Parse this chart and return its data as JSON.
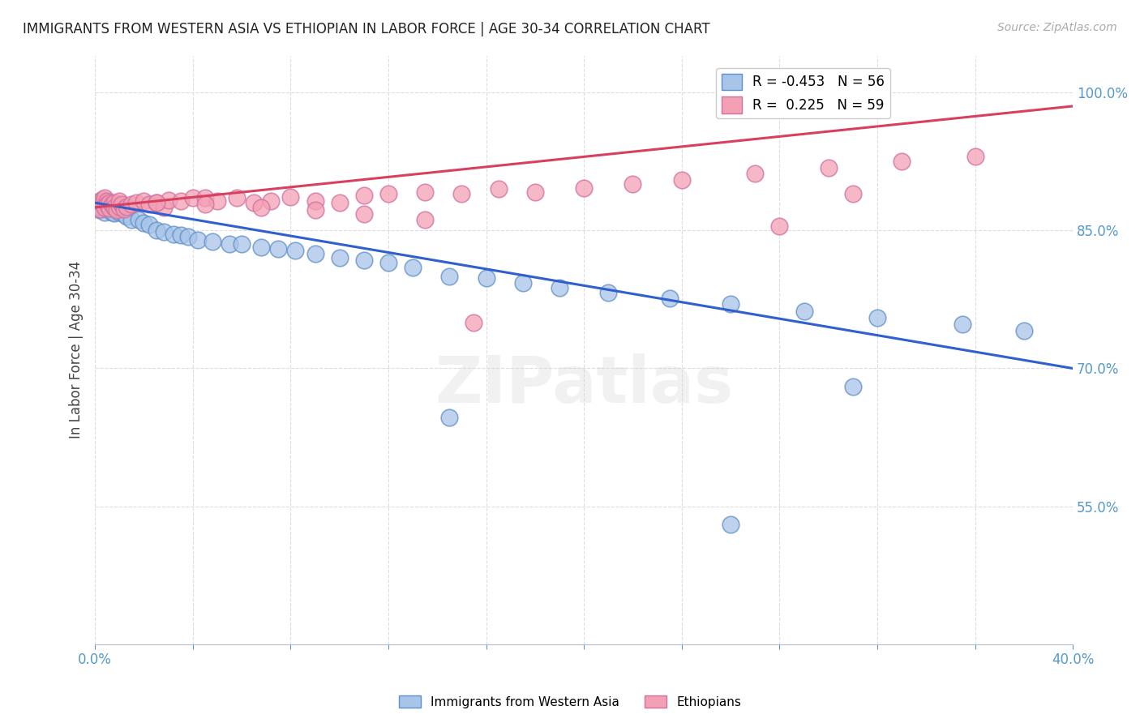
{
  "title": "IMMIGRANTS FROM WESTERN ASIA VS ETHIOPIAN IN LABOR FORCE | AGE 30-34 CORRELATION CHART",
  "source": "Source: ZipAtlas.com",
  "ylabel": "In Labor Force | Age 30-34",
  "xlim": [
    0.0,
    0.4
  ],
  "ylim": [
    0.4,
    1.04
  ],
  "xticks": [
    0.0,
    0.04,
    0.08,
    0.12,
    0.16,
    0.2,
    0.24,
    0.28,
    0.32,
    0.36,
    0.4
  ],
  "xtick_labels": [
    "0.0%",
    "",
    "",
    "",
    "",
    "",
    "",
    "",
    "",
    "",
    "40.0%"
  ],
  "yticks_right": [
    0.55,
    0.7,
    0.85,
    1.0
  ],
  "ytick_labels_right": [
    "55.0%",
    "70.0%",
    "85.0%",
    "100.0%"
  ],
  "legend_blue_r": "-0.453",
  "legend_blue_n": "56",
  "legend_pink_r": "0.225",
  "legend_pink_n": "59",
  "blue_color": "#a8c4e8",
  "pink_color": "#f4a0b4",
  "blue_line_color": "#3060d0",
  "pink_line_color": "#d84060",
  "axis_color": "#5599cc",
  "watermark": "ZIPatlas",
  "blue_scatter_x": [
    0.001,
    0.002,
    0.002,
    0.003,
    0.003,
    0.004,
    0.004,
    0.005,
    0.005,
    0.006,
    0.006,
    0.007,
    0.007,
    0.008,
    0.008,
    0.009,
    0.01,
    0.01,
    0.011,
    0.012,
    0.013,
    0.015,
    0.018,
    0.02,
    0.022,
    0.025,
    0.028,
    0.032,
    0.035,
    0.038,
    0.042,
    0.048,
    0.055,
    0.06,
    0.068,
    0.075,
    0.082,
    0.09,
    0.1,
    0.11,
    0.12,
    0.13,
    0.145,
    0.16,
    0.175,
    0.19,
    0.21,
    0.235,
    0.26,
    0.29,
    0.32,
    0.355,
    0.38,
    0.145,
    0.26,
    0.31
  ],
  "blue_scatter_y": [
    0.876,
    0.878,
    0.872,
    0.88,
    0.875,
    0.882,
    0.87,
    0.878,
    0.874,
    0.876,
    0.872,
    0.87,
    0.875,
    0.873,
    0.869,
    0.876,
    0.873,
    0.87,
    0.875,
    0.868,
    0.865,
    0.862,
    0.862,
    0.858,
    0.856,
    0.85,
    0.848,
    0.846,
    0.845,
    0.843,
    0.84,
    0.838,
    0.835,
    0.835,
    0.832,
    0.83,
    0.828,
    0.825,
    0.82,
    0.818,
    0.815,
    0.81,
    0.8,
    0.798,
    0.793,
    0.788,
    0.782,
    0.776,
    0.77,
    0.762,
    0.755,
    0.748,
    0.741,
    0.647,
    0.53,
    0.68
  ],
  "pink_scatter_x": [
    0.001,
    0.002,
    0.002,
    0.003,
    0.003,
    0.004,
    0.004,
    0.005,
    0.005,
    0.006,
    0.006,
    0.007,
    0.008,
    0.008,
    0.009,
    0.01,
    0.01,
    0.011,
    0.012,
    0.013,
    0.015,
    0.017,
    0.02,
    0.022,
    0.025,
    0.028,
    0.03,
    0.035,
    0.04,
    0.045,
    0.05,
    0.058,
    0.065,
    0.072,
    0.08,
    0.09,
    0.1,
    0.11,
    0.12,
    0.135,
    0.15,
    0.165,
    0.18,
    0.2,
    0.22,
    0.24,
    0.27,
    0.3,
    0.33,
    0.36,
    0.155,
    0.28,
    0.135,
    0.11,
    0.09,
    0.068,
    0.045,
    0.025,
    0.31
  ],
  "pink_scatter_y": [
    0.876,
    0.882,
    0.873,
    0.884,
    0.879,
    0.885,
    0.875,
    0.882,
    0.878,
    0.88,
    0.874,
    0.878,
    0.88,
    0.875,
    0.872,
    0.876,
    0.882,
    0.878,
    0.873,
    0.876,
    0.878,
    0.88,
    0.882,
    0.878,
    0.88,
    0.875,
    0.883,
    0.882,
    0.885,
    0.885,
    0.882,
    0.885,
    0.88,
    0.882,
    0.886,
    0.882,
    0.88,
    0.888,
    0.89,
    0.892,
    0.89,
    0.895,
    0.892,
    0.896,
    0.9,
    0.905,
    0.912,
    0.918,
    0.925,
    0.93,
    0.75,
    0.855,
    0.862,
    0.868,
    0.872,
    0.875,
    0.878,
    0.88,
    0.89
  ],
  "blue_trend_x": [
    0.0,
    0.4
  ],
  "blue_trend_y": [
    0.88,
    0.7
  ],
  "pink_trend_x": [
    0.0,
    0.4
  ],
  "pink_trend_y": [
    0.875,
    0.985
  ]
}
